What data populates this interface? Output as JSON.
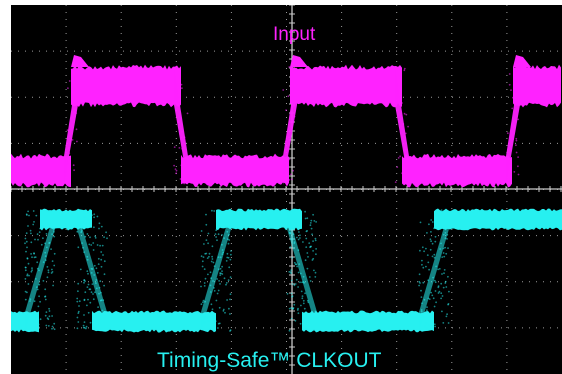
{
  "colors": {
    "background": "#000000",
    "page_background": "#ffffff",
    "input_color": "#ff22ff",
    "clkout_color": "#27f0f0",
    "grid_color": "#9a9a9a"
  },
  "chart_data": {
    "type": "line",
    "grid": true,
    "series": [
      {
        "name": "Input",
        "pattern": "square-wave",
        "levels": [
          "high",
          "low"
        ],
        "segments": [
          {
            "state": "low",
            "start": 0,
            "end": 60
          },
          {
            "state": "high",
            "start": 60,
            "end": 170
          },
          {
            "state": "low",
            "start": 170,
            "end": 279
          },
          {
            "state": "high",
            "start": 279,
            "end": 391
          },
          {
            "state": "low",
            "start": 391,
            "end": 502
          },
          {
            "state": "high",
            "start": 502,
            "end": 551
          }
        ]
      },
      {
        "name": "Timing-Safe™ CLKOUT",
        "pattern": "square-wave",
        "levels": [
          "high",
          "low"
        ],
        "segments": [
          {
            "state": "low",
            "start": 0,
            "end": 29
          },
          {
            "state": "high",
            "start": 29,
            "end": 81
          },
          {
            "state": "low",
            "start": 81,
            "end": 205
          },
          {
            "state": "high",
            "start": 205,
            "end": 291
          },
          {
            "state": "low",
            "start": 291,
            "end": 423
          },
          {
            "state": "high",
            "start": 423,
            "end": 551
          }
        ]
      }
    ]
  }
}
